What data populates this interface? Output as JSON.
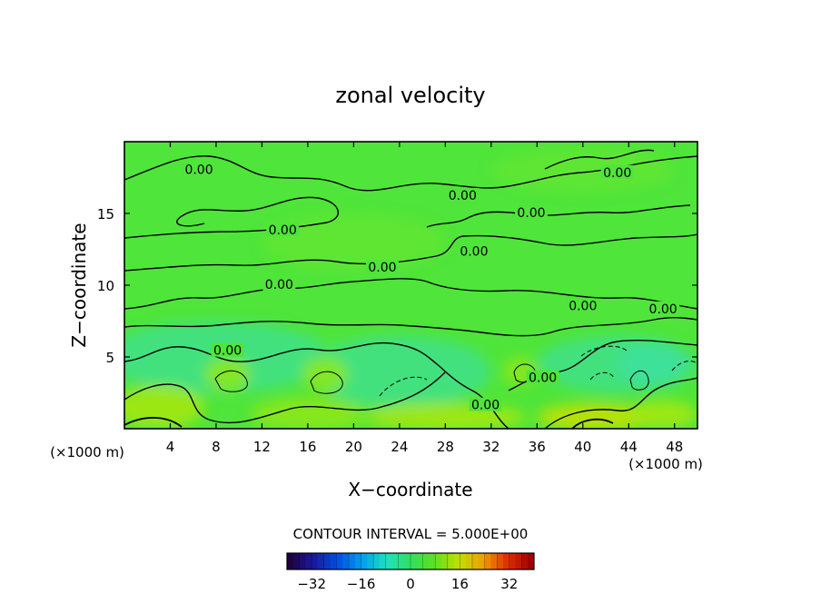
{
  "chart_data": {
    "type": "heatmap",
    "title": "zonal velocity",
    "xlabel": "X−coordinate",
    "ylabel": "Z−coordinate",
    "x_unit_left": "(×1000 m)",
    "x_unit_right": "(×1000 m)",
    "xlim": [
      0,
      50
    ],
    "ylim": [
      0,
      20
    ],
    "x_ticks": [
      4,
      8,
      12,
      16,
      20,
      24,
      28,
      32,
      36,
      40,
      44,
      48
    ],
    "y_ticks": [
      5,
      10,
      15
    ],
    "contour_interval_text": "CONTOUR INTERVAL = 5.000E+00",
    "contour_label": "0.00",
    "contour_label_positions": [
      {
        "x": 6.5,
        "z": 18.0
      },
      {
        "x": 13.8,
        "z": 13.8
      },
      {
        "x": 13.5,
        "z": 10.0
      },
      {
        "x": 9.0,
        "z": 5.4
      },
      {
        "x": 22.5,
        "z": 11.2
      },
      {
        "x": 29.5,
        "z": 16.2
      },
      {
        "x": 30.5,
        "z": 12.3
      },
      {
        "x": 35.5,
        "z": 15.0
      },
      {
        "x": 43.0,
        "z": 17.8
      },
      {
        "x": 40.0,
        "z": 8.5
      },
      {
        "x": 47.0,
        "z": 8.3
      },
      {
        "x": 36.5,
        "z": 3.5
      },
      {
        "x": 31.5,
        "z": 1.6
      }
    ],
    "colorbar": {
      "range": [
        -40,
        40
      ],
      "ticks": [
        -32,
        -16,
        0,
        16,
        32
      ],
      "tick_labels": [
        "−32",
        "−16",
        "0",
        "16",
        "32"
      ]
    },
    "colormap": [
      "#200040",
      "#1a1aa0",
      "#0050e0",
      "#00a0f0",
      "#20e0c0",
      "#30e060",
      "#60e020",
      "#c0e000",
      "#f0a000",
      "#e03000",
      "#a00000"
    ]
  }
}
